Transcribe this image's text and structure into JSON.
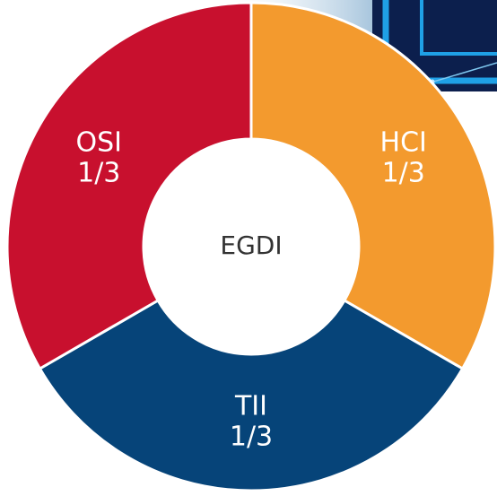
{
  "chart_data": {
    "type": "donut",
    "center_label": "EGDI",
    "categories": [
      "HCI",
      "TII",
      "OSI"
    ],
    "values": [
      0.3333333333,
      0.3333333333,
      0.3333333333
    ],
    "value_labels": [
      "1/3",
      "1/3",
      "1/3"
    ],
    "colors": [
      "#f39a2e",
      "#064479",
      "#c8102e"
    ]
  }
}
